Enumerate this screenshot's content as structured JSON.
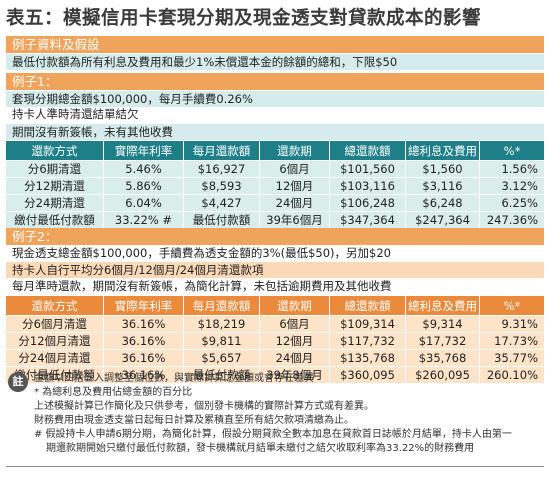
{
  "title": "表五：模擬信用卡套現分期及現金透支對貸款成本的影響",
  "example_section_label": "例子資料及假設",
  "min_payment_rule": "最低付款額為所有利息及費用和最少1%未償還本金的餘額的總和，下限$50",
  "example1": {
    "label": "例子1：",
    "line1": "套現分期總金額$100,000，每月手續費0.26%",
    "line2": "持卡人準時清還結單結欠",
    "line3": "期間沒有新簽帳，未有其他收費",
    "headers": [
      "還款方式",
      "實際年利率",
      "每月還款額",
      "還款期",
      "總還款額",
      "總利息及費用",
      "%*"
    ],
    "rows": [
      [
        "分6期清還",
        "5.46%",
        "$16,927",
        "6個月",
        "$101,560",
        "$1,560",
        "1.56%"
      ],
      [
        "分12期清還",
        "5.86%",
        "$8,593",
        "12個月",
        "$103,116",
        "$3,116",
        "3.12%"
      ],
      [
        "分24期清還",
        "6.04%",
        "$4,427",
        "24個月",
        "$106,248",
        "$6,248",
        "6.25%"
      ],
      [
        "繳付最低付款額",
        "33.22% #",
        "最低付款額",
        "39年6個月",
        "$347,364",
        "$247,364",
        "247.36%"
      ]
    ]
  },
  "example2": {
    "label": "例子2：",
    "line1": "現金透支總金額$100,000，手續費為透支金額的3%(最低$50)，另加$20",
    "line2": "持卡人自行平均分6個月/12個月/24個月清還款項",
    "line3": "每月準時還款，期間沒有新簽帳，為簡化計算，未包括逾期費用及其他收費",
    "headers": [
      "還款方式",
      "實際年利率",
      "每月還款額",
      "還款期",
      "總還款額",
      "總利息及費用",
      "%*"
    ],
    "rows": [
      [
        "分6個月清還",
        "36.16%",
        "$18,219",
        "6個月",
        "$109,314",
        "$9,314",
        "9.31%"
      ],
      [
        "分12個月清還",
        "36.16%",
        "$9,811",
        "12個月",
        "$117,732",
        "$17,732",
        "17.73%"
      ],
      [
        "分24個月清還",
        "36.16%",
        "$5,657",
        "24個月",
        "$135,768",
        "$35,768",
        "35.77%"
      ],
      [
        "繳付最低付款額",
        "36.16%",
        "最低付款額",
        "39年8個月",
        "$360,095",
        "$260,095",
        "260.10%"
      ]
    ]
  },
  "notes": {
    "icon_label": "註",
    "lines": [
      "金額以四捨五入調整至個位數，與實際計算之金額或會存在差異",
      "* 為總利息及費用佔總金額的百分比",
      "上述模擬計算已作簡化及只供參考，個別發卡機構的實際計算方式或有差異。",
      "財務費用由現金透支當日起每日計算及累積直至所有結欠款項清繳為止。",
      "# 假設持卡人申請6期分期，為簡化計算，假設分期貸款全數本加息在貸款首日誌帳於月結單，持卡人由第一",
      "期還款期開始只繳付最低付款額，發卡機構就月結單未繳付之結欠收取利率為33.22%的財務費用"
    ]
  }
}
